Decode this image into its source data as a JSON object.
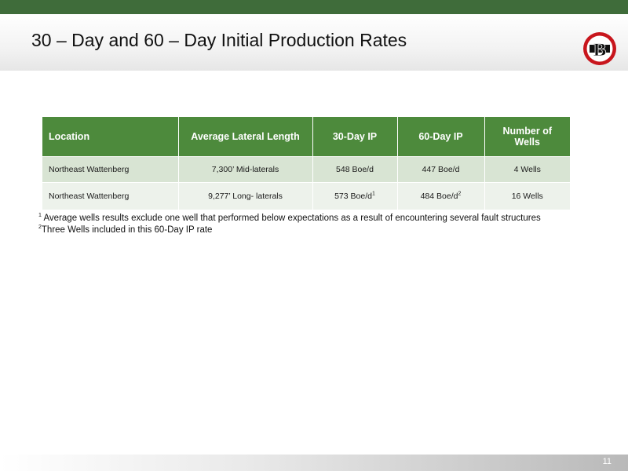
{
  "title": "30 – Day and 60 – Day Initial Production Rates",
  "logo": {
    "letter": "B",
    "ring_color": "#c8161d"
  },
  "colors": {
    "top_bar": "#3f6c3a",
    "header_bg": "#4d8a3c",
    "row_odd": "#d8e4d3",
    "row_even": "#edf2eb"
  },
  "table": {
    "headers": [
      "Location",
      "Average Lateral Length",
      "30-Day IP",
      "60-Day IP",
      "Number of Wells"
    ],
    "rows": [
      {
        "location": "Northeast Wattenberg",
        "lateral": "7,300’ Mid-laterals",
        "ip30": "548 Boe/d",
        "ip30_sup": "",
        "ip60": "447 Boe/d",
        "ip60_sup": "",
        "wells": "4 Wells"
      },
      {
        "location": "Northeast Wattenberg",
        "lateral": "9,277’ Long- laterals",
        "ip30": "573 Boe/d",
        "ip30_sup": "1",
        "ip60": "484 Boe/d",
        "ip60_sup": "2",
        "wells": "16 Wells"
      }
    ]
  },
  "footnotes": [
    {
      "marker": "1",
      "text": " Average wells results exclude one well that performed below expectations as a result of encountering several fault structures"
    },
    {
      "marker": "2",
      "text": "Three Wells included in this 60-Day IP rate"
    }
  ],
  "page_number": "11"
}
